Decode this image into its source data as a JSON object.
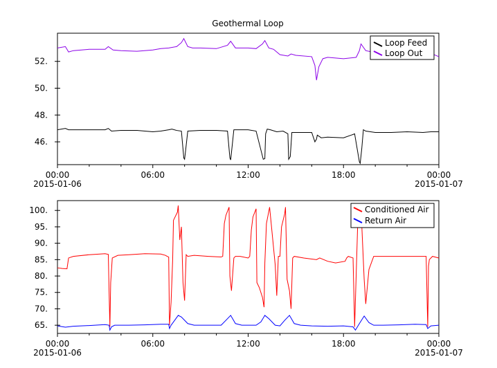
{
  "colors": {
    "loop_feed": "#000000",
    "loop_out": "#8b00e8",
    "conditioned_air": "#ff0000",
    "return_air": "#0000ff"
  },
  "chart_data": [
    {
      "type": "line",
      "title": "Geothermal Loop",
      "xlabel": "",
      "ylabel": "",
      "grid": false,
      "legend": "top-right",
      "x_ticks": [
        "00:00",
        "06:00",
        "12:00",
        "18:00",
        "00:00"
      ],
      "x_dates": [
        "2015-01-06",
        "",
        "",
        "",
        "2015-01-07"
      ],
      "x_range_hours": [
        0,
        24
      ],
      "y_ticks": [
        "46.",
        "48.",
        "50.",
        "52."
      ],
      "y_tick_values": [
        46,
        48,
        50,
        52
      ],
      "ylim": [
        44.3,
        54.1
      ],
      "series": [
        {
          "name": "Loop Feed",
          "color": "#000000",
          "x": [
            0,
            0.5,
            0.7,
            1.0,
            2.0,
            3.0,
            3.2,
            3.4,
            4.0,
            5.0,
            6.0,
            6.5,
            7.0,
            7.2,
            7.5,
            7.8,
            7.95,
            8.0,
            8.05,
            8.2,
            9.0,
            10.0,
            10.7,
            10.85,
            10.9,
            10.95,
            11.1,
            12.0,
            12.5,
            12.95,
            13.05,
            13.1,
            13.2,
            13.4,
            13.8,
            14.2,
            14.5,
            14.55,
            14.65,
            14.75,
            15.0,
            16.0,
            16.2,
            16.3,
            16.35,
            16.6,
            17.0,
            18.0,
            18.6,
            18.7,
            19.0,
            19.05,
            19.15,
            19.25,
            19.4,
            20.0,
            21.0,
            22.0,
            23.0,
            23.5,
            24.0
          ],
          "values": [
            46.9,
            47.0,
            46.9,
            46.9,
            46.9,
            46.9,
            47.0,
            46.8,
            46.85,
            46.85,
            46.75,
            46.8,
            46.9,
            46.95,
            46.85,
            46.8,
            44.8,
            44.7,
            45.2,
            46.8,
            46.85,
            46.85,
            46.8,
            44.8,
            44.65,
            45.2,
            46.9,
            46.9,
            46.8,
            44.7,
            44.75,
            46.6,
            46.95,
            46.9,
            46.75,
            46.8,
            46.6,
            44.7,
            44.9,
            46.7,
            46.7,
            46.7,
            46.0,
            46.2,
            46.5,
            46.3,
            46.35,
            46.3,
            46.55,
            46.6,
            44.5,
            44.4,
            45.5,
            46.9,
            46.8,
            46.7,
            46.7,
            46.75,
            46.7,
            46.75,
            46.75
          ]
        },
        {
          "name": "Loop Out",
          "color": "#8b00e8",
          "x": [
            0,
            0.5,
            0.7,
            1.0,
            2.0,
            3.0,
            3.2,
            3.5,
            4.0,
            5.0,
            6.0,
            6.5,
            7.0,
            7.5,
            7.8,
            7.95,
            8.2,
            8.5,
            9.0,
            10.0,
            10.7,
            10.9,
            11.2,
            12.0,
            12.5,
            12.9,
            13.05,
            13.3,
            13.6,
            14.0,
            14.5,
            14.7,
            15.0,
            16.0,
            16.2,
            16.3,
            16.45,
            16.7,
            17.0,
            18.0,
            18.8,
            19.0,
            19.1,
            19.4,
            20.0,
            21.0,
            22.0,
            23.0,
            23.5,
            24.0
          ],
          "values": [
            53.0,
            53.1,
            52.7,
            52.8,
            52.9,
            52.9,
            53.1,
            52.85,
            52.8,
            52.75,
            52.85,
            52.95,
            53.0,
            53.1,
            53.4,
            53.7,
            53.1,
            53.0,
            53.0,
            52.95,
            53.2,
            53.5,
            53.0,
            53.0,
            52.95,
            53.3,
            53.55,
            53.0,
            52.9,
            52.5,
            52.4,
            52.55,
            52.45,
            52.35,
            51.7,
            50.6,
            51.6,
            52.2,
            52.3,
            52.2,
            52.3,
            52.8,
            53.3,
            52.8,
            52.65,
            52.6,
            52.6,
            52.65,
            52.6,
            52.35
          ]
        }
      ]
    },
    {
      "type": "line",
      "title": "",
      "xlabel": "",
      "ylabel": "",
      "grid": false,
      "legend": "top-right",
      "x_ticks": [
        "00:00",
        "06:00",
        "12:00",
        "18:00",
        "00:00"
      ],
      "x_dates": [
        "2015-01-06",
        "",
        "",
        "",
        "2015-01-07"
      ],
      "x_range_hours": [
        0,
        24
      ],
      "y_ticks": [
        "65.",
        "70.",
        "75.",
        "80.",
        "85.",
        "90.",
        "95.",
        "100."
      ],
      "y_tick_values": [
        65,
        70,
        75,
        80,
        85,
        90,
        95,
        100
      ],
      "ylim": [
        62.5,
        103.0
      ],
      "series": [
        {
          "name": "Conditioned Air",
          "color": "#ff0000",
          "x": [
            0,
            0.3,
            0.6,
            0.7,
            1.0,
            2.0,
            3.0,
            3.2,
            3.25,
            3.3,
            3.35,
            3.45,
            3.8,
            4.5,
            5.5,
            6.5,
            6.8,
            6.9,
            7.0,
            7.05,
            7.15,
            7.25,
            7.3,
            7.55,
            7.6,
            7.7,
            7.8,
            7.9,
            8.0,
            8.1,
            8.2,
            8.6,
            9.5,
            10.3,
            10.4,
            10.5,
            10.6,
            10.8,
            10.85,
            10.95,
            11.1,
            11.2,
            11.5,
            12.0,
            12.1,
            12.2,
            12.3,
            12.5,
            12.55,
            12.7,
            12.9,
            13.0,
            13.05,
            13.15,
            13.25,
            13.35,
            13.7,
            13.8,
            13.9,
            14.0,
            14.1,
            14.3,
            14.35,
            14.45,
            14.6,
            14.7,
            14.8,
            14.9,
            15.5,
            16.3,
            16.5,
            17.0,
            17.5,
            18.1,
            18.2,
            18.3,
            18.6,
            18.7,
            18.9,
            19.0,
            19.1,
            19.3,
            19.4,
            19.6,
            19.9,
            20.5,
            21.5,
            22.5,
            23.2,
            23.25,
            23.3,
            23.35,
            23.4,
            23.6,
            24.0
          ],
          "values": [
            82.5,
            82.3,
            82.2,
            85.5,
            86.0,
            86.5,
            86.8,
            86.6,
            75.0,
            64.5,
            78.0,
            85.5,
            86.3,
            86.5,
            86.8,
            86.7,
            86.3,
            86.0,
            85.8,
            65.0,
            72.0,
            85.0,
            97.0,
            99.5,
            101.5,
            91.0,
            95.0,
            78.0,
            72.5,
            86.5,
            86.0,
            86.3,
            86.0,
            85.8,
            86.0,
            96.0,
            98.5,
            101.0,
            80.0,
            75.5,
            85.5,
            86.0,
            86.0,
            85.5,
            86.0,
            94.0,
            98.0,
            100.5,
            78.0,
            76.5,
            73.5,
            70.5,
            84.0,
            96.0,
            98.5,
            101.0,
            83.5,
            74.0,
            86.0,
            86.0,
            95.0,
            99.0,
            101.0,
            79.0,
            75.5,
            70.0,
            85.5,
            86.0,
            85.5,
            85.0,
            85.5,
            84.5,
            84.0,
            84.5,
            85.5,
            86.0,
            85.5,
            64.5,
            97.0,
            98.0,
            101.0,
            79.0,
            71.5,
            82.0,
            86.0,
            86.0,
            86.0,
            86.0,
            86.0,
            75.0,
            64.5,
            83.0,
            85.0,
            86.0,
            85.5
          ]
        },
        {
          "name": "Return Air",
          "color": "#0000ff",
          "x": [
            0,
            0.5,
            1.0,
            2.0,
            3.0,
            3.25,
            3.3,
            3.4,
            3.6,
            4.5,
            5.5,
            6.5,
            7.0,
            7.05,
            7.15,
            7.3,
            7.6,
            7.8,
            8.2,
            8.6,
            9.5,
            10.3,
            10.6,
            10.9,
            11.2,
            11.6,
            12.0,
            12.5,
            12.8,
            13.05,
            13.3,
            13.7,
            14.0,
            14.3,
            14.6,
            14.9,
            15.3,
            16.0,
            17.0,
            18.0,
            18.6,
            18.75,
            19.0,
            19.3,
            19.6,
            19.9,
            20.5,
            21.5,
            22.5,
            23.2,
            23.3,
            23.5,
            24.0
          ],
          "values": [
            64.8,
            64.4,
            64.7,
            64.9,
            65.2,
            65.0,
            63.5,
            64.5,
            65.0,
            65.0,
            65.1,
            65.3,
            65.3,
            64.0,
            65.0,
            66.0,
            68.0,
            67.5,
            65.5,
            65.0,
            65.0,
            65.0,
            66.5,
            68.0,
            65.5,
            65.0,
            65.0,
            65.0,
            66.0,
            68.0,
            67.0,
            65.0,
            64.8,
            66.5,
            68.0,
            65.5,
            65.0,
            64.8,
            64.7,
            64.8,
            64.5,
            63.5,
            65.5,
            67.8,
            65.8,
            65.0,
            65.0,
            65.1,
            65.3,
            65.2,
            64.0,
            64.8,
            65.0
          ]
        }
      ]
    }
  ]
}
